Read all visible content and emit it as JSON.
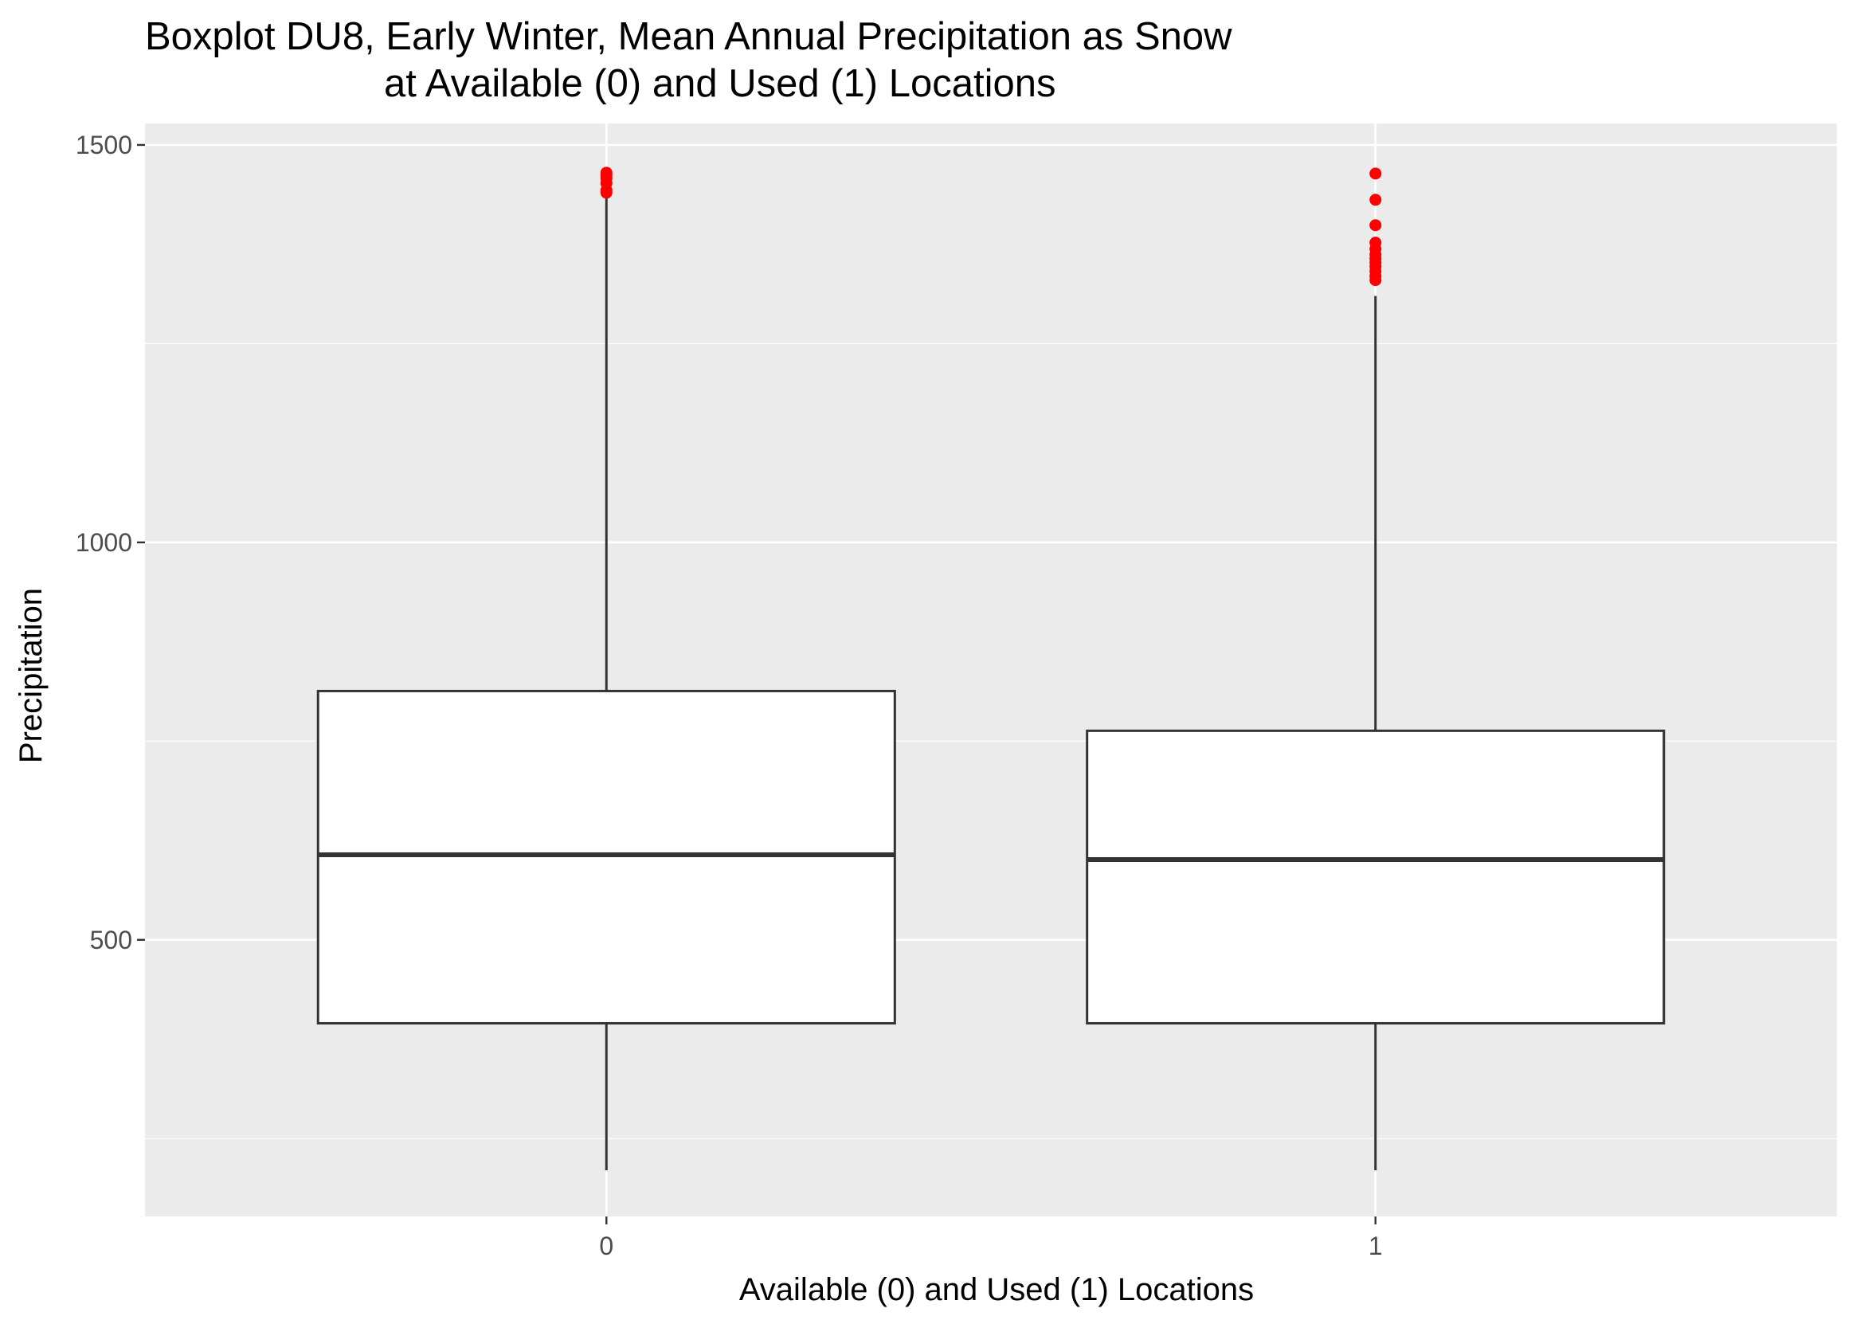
{
  "chart_data": {
    "type": "box",
    "title_lines": [
      "Boxplot DU8, Early Winter, Mean Annual Precipitation as Snow",
      "at Available (0) and Used (1) Locations"
    ],
    "xlabel": "Available (0) and Used (1) Locations",
    "ylabel": "Precipitation",
    "categories": [
      "0",
      "1"
    ],
    "ylim": [
      152,
      1527
    ],
    "y_ticks": [
      {
        "value": 500,
        "label": "500"
      },
      {
        "value": 1000,
        "label": "1000"
      },
      {
        "value": 1500,
        "label": "1500"
      }
    ],
    "y_minor_ticks": [
      250,
      750,
      1250
    ],
    "grid": true,
    "colors": {
      "panel_background": "#ebebeb",
      "grid_line": "#ffffff",
      "box_fill": "#ffffff",
      "box_stroke": "#333333",
      "outlier": "#ff0000",
      "tick_mark": "#333333"
    },
    "boxes": [
      {
        "category": "0",
        "whisker_low": 210,
        "q1": 395,
        "median": 607,
        "q3": 813,
        "whisker_high": 1440,
        "outliers": [
          1440,
          1443,
          1452,
          1458,
          1462,
          1465
        ]
      },
      {
        "category": "1",
        "whisker_low": 210,
        "q1": 395,
        "median": 601,
        "q3": 763,
        "whisker_high": 1310,
        "outliers": [
          1330,
          1335,
          1341,
          1347,
          1352,
          1357,
          1362,
          1369,
          1377,
          1399,
          1431,
          1464
        ]
      }
    ]
  }
}
